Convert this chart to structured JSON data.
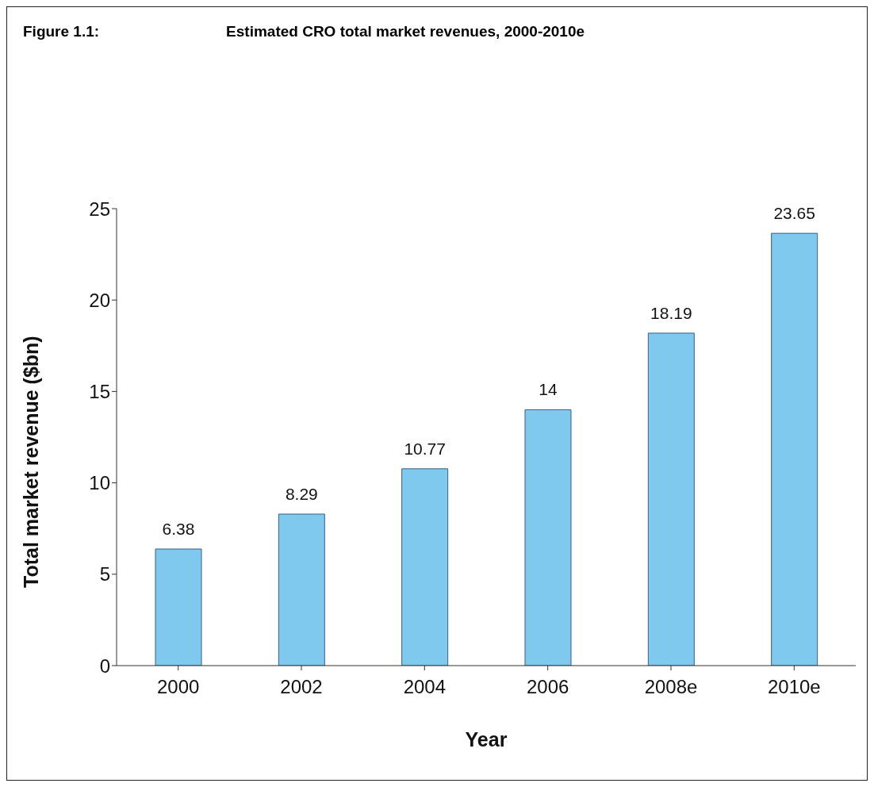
{
  "chart_data": {
    "type": "bar",
    "title": "Estimated CRO total market revenues, 2000-2010e",
    "annotations": [
      "Figure 1.1:"
    ],
    "xlabel": "Year",
    "ylabel": "Total market revenue ($bn)",
    "categories": [
      "2000",
      "2002",
      "2004",
      "2006",
      "2008e",
      "2010e"
    ],
    "values": [
      6.38,
      8.29,
      10.77,
      14,
      18.19,
      23.65
    ],
    "color": "#7fc8ee",
    "ylim": [
      0,
      25
    ],
    "yticks": [
      0,
      5,
      10,
      15,
      20,
      25
    ],
    "data_labels": true,
    "grid": false,
    "legend": false
  }
}
